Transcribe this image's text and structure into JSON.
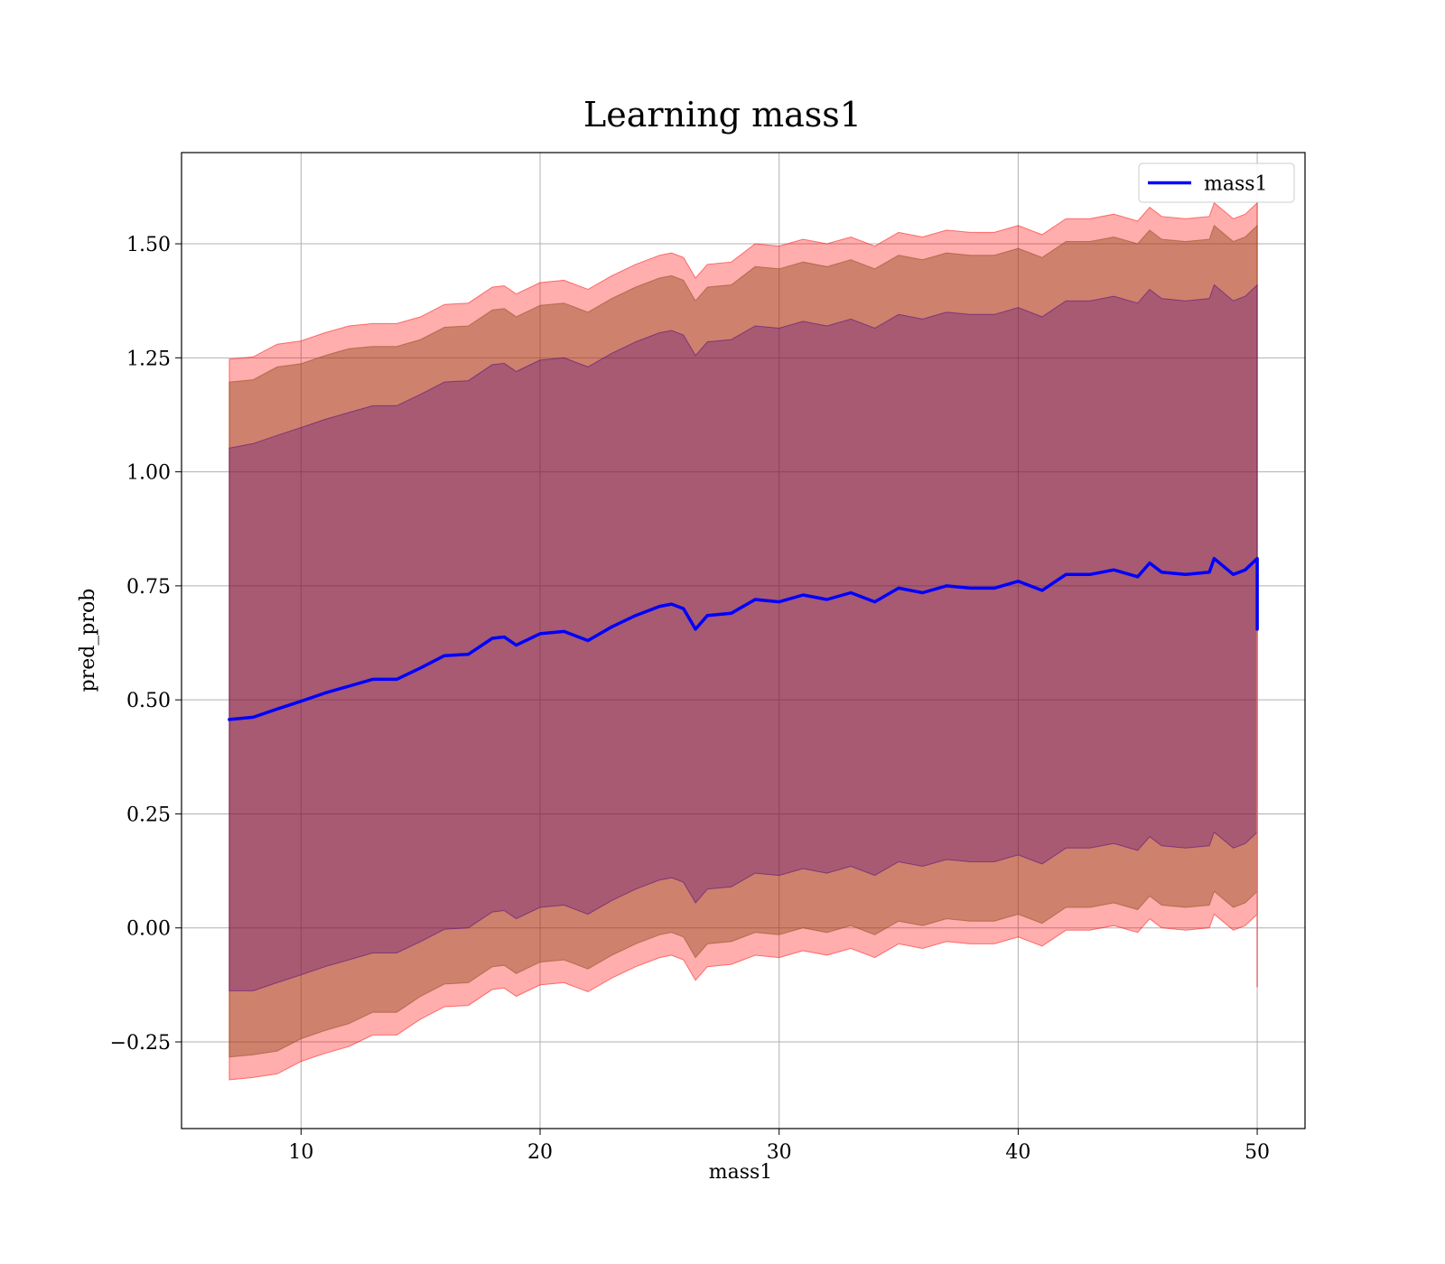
{
  "chart_data": {
    "type": "area",
    "title": "Learning mass1",
    "xlabel": "mass1",
    "ylabel": "pred_prob",
    "xlim": [
      5,
      52
    ],
    "ylim": [
      -0.44,
      1.7
    ],
    "xticks": [
      10,
      20,
      30,
      40,
      50
    ],
    "xtick_labels": [
      "10",
      "20",
      "30",
      "40",
      "50"
    ],
    "yticks": [
      -0.25,
      0.0,
      0.25,
      0.5,
      0.75,
      1.0,
      1.25,
      1.5
    ],
    "ytick_labels": [
      "−0.25",
      "0.00",
      "0.25",
      "0.50",
      "0.75",
      "1.00",
      "1.25",
      "1.50"
    ],
    "grid": true,
    "legend": {
      "position": "top-right",
      "entries": [
        "mass1"
      ]
    },
    "colors": {
      "line": "#0000ff",
      "band_3sd": "#ff0000",
      "band_2sd": "#8b4513",
      "band_1sd": "#4b0082"
    },
    "x": [
      7.0,
      8.0,
      9.0,
      10.0,
      11.0,
      12.0,
      13.0,
      14.0,
      15.0,
      16.0,
      17.0,
      18.0,
      18.5,
      19.0,
      20.0,
      21.0,
      22.0,
      23.0,
      24.0,
      25.0,
      25.5,
      26.0,
      26.5,
      27.0,
      28.0,
      29.0,
      30.0,
      31.0,
      32.0,
      33.0,
      34.0,
      35.0,
      36.0,
      37.0,
      38.0,
      39.0,
      40.0,
      41.0,
      42.0,
      43.0,
      44.0,
      45.0,
      45.5,
      46.0,
      47.0,
      48.0,
      48.2,
      49.0,
      49.5,
      50.0
    ],
    "series": [
      {
        "name": "mass1",
        "values": [
          0.457,
          0.462,
          0.48,
          0.497,
          0.515,
          0.53,
          0.545,
          0.545,
          0.57,
          0.597,
          0.6,
          0.635,
          0.638,
          0.62,
          0.645,
          0.65,
          0.63,
          0.66,
          0.685,
          0.705,
          0.71,
          0.7,
          0.655,
          0.685,
          0.69,
          0.72,
          0.715,
          0.73,
          0.72,
          0.735,
          0.715,
          0.745,
          0.735,
          0.75,
          0.745,
          0.745,
          0.76,
          0.74,
          0.775,
          0.775,
          0.785,
          0.77,
          0.8,
          0.78,
          0.775,
          0.78,
          0.81,
          0.775,
          0.785,
          0.81
        ]
      }
    ],
    "bands": [
      {
        "level": 3,
        "width": [
          0.79,
          0.79,
          0.8,
          0.79,
          0.79,
          0.79,
          0.78,
          0.78,
          0.77,
          0.77,
          0.77,
          0.77,
          0.77,
          0.77,
          0.77,
          0.77,
          0.77,
          0.77,
          0.77,
          0.77,
          0.77,
          0.77,
          0.77,
          0.77,
          0.77,
          0.78,
          0.78,
          0.78,
          0.78,
          0.78,
          0.78,
          0.78,
          0.78,
          0.78,
          0.78,
          0.78,
          0.78,
          0.78,
          0.78,
          0.78,
          0.78,
          0.78,
          0.78,
          0.78,
          0.78,
          0.78,
          0.78,
          0.78,
          0.78,
          0.78
        ]
      },
      {
        "level": 2,
        "width": [
          0.74,
          0.74,
          0.75,
          0.74,
          0.74,
          0.74,
          0.73,
          0.73,
          0.72,
          0.72,
          0.72,
          0.72,
          0.72,
          0.72,
          0.72,
          0.72,
          0.72,
          0.72,
          0.72,
          0.72,
          0.72,
          0.72,
          0.72,
          0.72,
          0.72,
          0.73,
          0.73,
          0.73,
          0.73,
          0.73,
          0.73,
          0.73,
          0.73,
          0.73,
          0.73,
          0.73,
          0.73,
          0.73,
          0.73,
          0.73,
          0.73,
          0.73,
          0.73,
          0.73,
          0.73,
          0.73,
          0.73,
          0.73,
          0.73,
          0.73
        ]
      },
      {
        "level": 1,
        "width": [
          0.595,
          0.6,
          0.6,
          0.6,
          0.6,
          0.6,
          0.6,
          0.6,
          0.6,
          0.6,
          0.6,
          0.6,
          0.6,
          0.6,
          0.6,
          0.6,
          0.6,
          0.6,
          0.6,
          0.6,
          0.6,
          0.6,
          0.6,
          0.6,
          0.6,
          0.6,
          0.6,
          0.6,
          0.6,
          0.6,
          0.6,
          0.6,
          0.6,
          0.6,
          0.6,
          0.6,
          0.6,
          0.6,
          0.6,
          0.6,
          0.6,
          0.6,
          0.6,
          0.6,
          0.6,
          0.6,
          0.6,
          0.6,
          0.6,
          0.6
        ]
      }
    ],
    "end_drop": {
      "x": 50.0,
      "line_value": 0.655,
      "lower_value": -0.13
    }
  }
}
